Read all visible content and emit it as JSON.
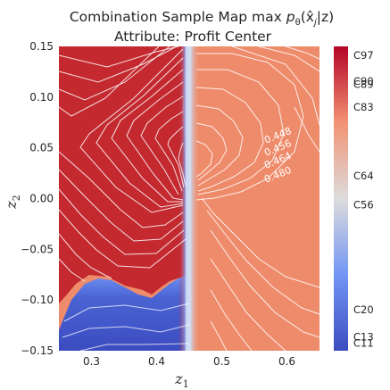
{
  "chart_data": {
    "type": "heatmap",
    "title_line1": "Combination Sample Map max ",
    "title_math": "p",
    "title_sub": "θ",
    "title_tail": "(x̂",
    "title_sub2": "j",
    "title_end": "|z)",
    "subtitle": "Attribute: Profit Center",
    "xlabel": "z",
    "xlabel_sub": "1",
    "ylabel": "z",
    "ylabel_sub": "2",
    "xlim": [
      0.25,
      0.65
    ],
    "ylim": [
      -0.15,
      0.15
    ],
    "xticks": [
      "0.3",
      "0.4",
      "0.5",
      "0.6"
    ],
    "xtick_values": [
      0.3,
      0.4,
      0.5,
      0.6
    ],
    "yticks": [
      "−0.15",
      "−0.10",
      "−0.05",
      "0.00",
      "0.05",
      "0.10",
      "0.15"
    ],
    "ytick_values": [
      -0.15,
      -0.1,
      -0.05,
      0.0,
      0.05,
      0.1,
      0.15
    ],
    "colormap": "coolwarm",
    "colorbar_labels": [
      {
        "label": "C97",
        "pos": 0.97
      },
      {
        "label": "C90",
        "pos": 0.885
      },
      {
        "label": "C89",
        "pos": 0.875
      },
      {
        "label": "C83",
        "pos": 0.8
      },
      {
        "label": "C64",
        "pos": 0.575
      },
      {
        "label": "C56",
        "pos": 0.48
      },
      {
        "label": "C20",
        "pos": 0.135
      },
      {
        "label": "C13",
        "pos": 0.045
      },
      {
        "label": "C11",
        "pos": 0.025
      }
    ],
    "regions": [
      {
        "class": "C97",
        "description": "upper-left region (x < ~0.45, above blue pocket)",
        "color": "#c1282f"
      },
      {
        "class": "C56",
        "description": "thin boundary strip near x ≈ 0.45",
        "color": "#d7dce6"
      },
      {
        "class": "C64",
        "description": "right region (x > ~0.46)",
        "color": "#ef8f6f"
      },
      {
        "class": "C11",
        "description": "lower-left pocket (y < ~-0.08)",
        "color": "#4460d0"
      }
    ],
    "contour_labels": [
      "0.448",
      "0.456",
      "0.464",
      "0.480"
    ]
  }
}
